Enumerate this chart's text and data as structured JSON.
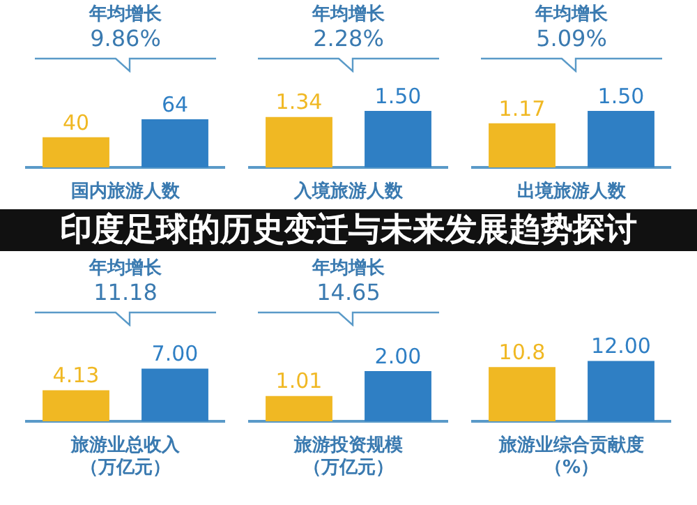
{
  "chart_data": [
    {
      "type": "bar",
      "categories": [
        null,
        null
      ],
      "values": [
        40,
        64
      ],
      "colors": [
        "#f0b823",
        "#2f7fc4"
      ],
      "data_labels": true,
      "xlabel": "国内旅游人数",
      "annotations": [
        "年均增长",
        "9.86%"
      ]
    },
    {
      "type": "bar",
      "categories": [
        null,
        null
      ],
      "values": [
        1.34,
        1.5
      ],
      "value_labels": [
        "1.34",
        "1.50"
      ],
      "colors": [
        "#f0b823",
        "#2f7fc4"
      ],
      "xlabel": "入境旅游人数",
      "annotations": [
        "年均增长",
        "2.28%"
      ]
    },
    {
      "type": "bar",
      "categories": [
        null,
        null
      ],
      "values": [
        1.17,
        1.5
      ],
      "value_labels": [
        "1.17",
        "1.50"
      ],
      "colors": [
        "#f0b823",
        "#2f7fc4"
      ],
      "xlabel": "出境旅游人数",
      "annotations": [
        "年均增长",
        "5.09%"
      ]
    },
    {
      "type": "other",
      "title": "印度足球的历史变迁与未来发展趋势探讨"
    },
    {
      "type": "bar",
      "categories": [
        null,
        null
      ],
      "values": [
        4.13,
        7
      ],
      "value_labels": [
        "4.13",
        "7.00"
      ],
      "colors": [
        "#f0b823",
        "#2f7fc4"
      ],
      "xlabel": "旅游业总收入（万亿元）",
      "annotations": [
        "年均增长",
        "11.18"
      ]
    },
    {
      "type": "bar",
      "categories": [
        null,
        null
      ],
      "values": [
        1.01,
        2
      ],
      "value_labels": [
        "1.01",
        "2.00"
      ],
      "colors": [
        "#f0b823",
        "#2f7fc4"
      ],
      "xlabel": "旅游投资规模（万亿元）",
      "annotations": [
        "年均增长",
        "14.65"
      ]
    },
    {
      "type": "bar",
      "categories": [
        null,
        null
      ],
      "values": [
        10.8,
        12
      ],
      "value_labels": [
        "10.8",
        "12.00"
      ],
      "colors": [
        "#f0b823",
        "#2f7fc4"
      ],
      "xlabel": "旅游业综合贡献度（%）"
    }
  ]
}
